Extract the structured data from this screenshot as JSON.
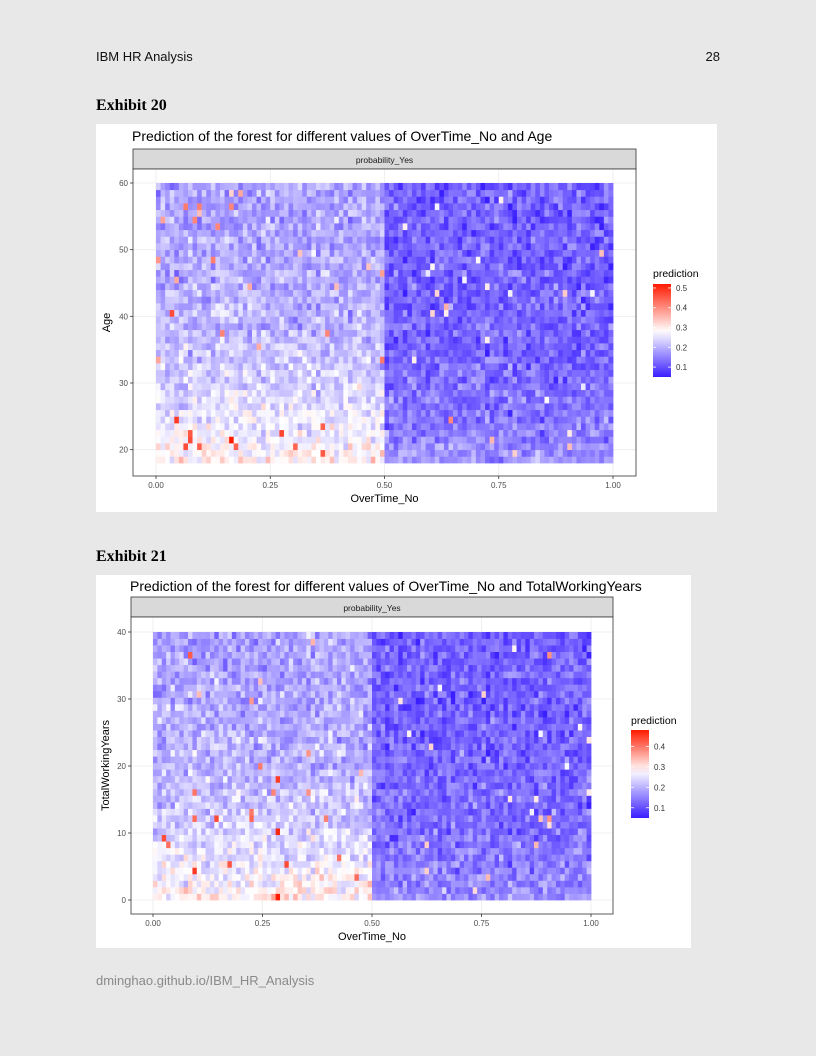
{
  "header": {
    "left": "IBM HR Analysis",
    "page_number": "28"
  },
  "footer": {
    "url": "dminghao.github.io/IBM_HR_Analysis"
  },
  "exhibits": [
    {
      "label": "Exhibit 20",
      "chart_data": {
        "type": "heatmap",
        "title": "Prediction of the forest for different values of OverTime_No and Age",
        "facet_label": "probability_Yes",
        "xlabel": "OverTime_No",
        "ylabel": "Age",
        "xlim": [
          0,
          1
        ],
        "ylim": [
          18,
          60
        ],
        "x_ticks": [
          "0.00",
          "0.25",
          "0.50",
          "0.75",
          "1.00"
        ],
        "y_ticks": [
          "20",
          "30",
          "40",
          "50",
          "60"
        ],
        "legend": {
          "title": "prediction",
          "labels": [
            "0.5",
            "0.4",
            "0.3",
            "0.2",
            "0.1"
          ],
          "range": [
            0.05,
            0.52
          ],
          "placement": "right"
        },
        "colors": {
          "low": "#3a1fff",
          "mid": "#ffffff",
          "high": "#ff1a00"
        },
        "trend": "Higher prediction (~0.2-0.35) for OverTime_No < 0.5 and young ages (18-30); lower (~0.1-0.15) for OverTime_No > 0.5"
      }
    },
    {
      "label": "Exhibit 21",
      "chart_data": {
        "type": "heatmap",
        "title": "Prediction of the forest for different values of OverTime_No and TotalWorkingYears",
        "facet_label": "probability_Yes",
        "xlabel": "OverTime_No",
        "ylabel": "TotalWorkingYears",
        "xlim": [
          0,
          1
        ],
        "ylim": [
          0,
          40
        ],
        "x_ticks": [
          "0.00",
          "0.25",
          "0.50",
          "0.75",
          "1.00"
        ],
        "y_ticks": [
          "0",
          "10",
          "20",
          "30",
          "40"
        ],
        "legend": {
          "title": "prediction",
          "labels": [
            "0.4",
            "0.3",
            "0.2",
            "0.1"
          ],
          "range": [
            0.05,
            0.48
          ],
          "placement": "right"
        },
        "colors": {
          "low": "#3a1fff",
          "mid": "#ffffff",
          "high": "#ff1a00"
        },
        "trend": "Higher prediction (~0.2-0.3) for OverTime_No < 0.5 and few working years (0-10); lower (~0.1-0.15) for OverTime_No > 0.5"
      }
    }
  ]
}
